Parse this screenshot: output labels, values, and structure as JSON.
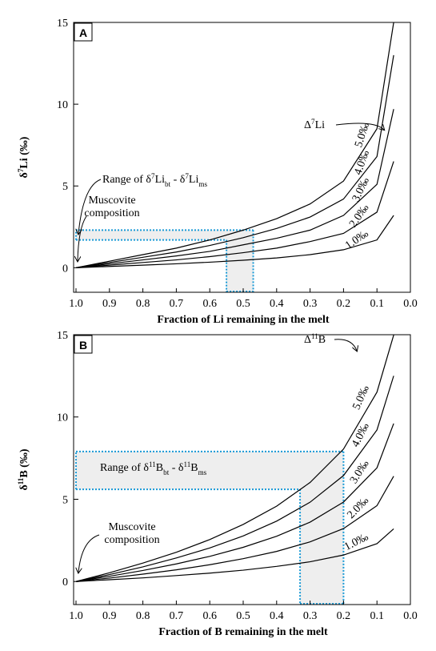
{
  "chart_data": [
    {
      "type": "line",
      "panel_label": "A",
      "xlabel": "Fraction of Li remaining in the melt",
      "ylabel": [
        {
          "text": "δ"
        },
        {
          "text": "7",
          "pos": "sup"
        },
        {
          "text": "Li (‰)"
        }
      ],
      "x": [
        1.0,
        0.9,
        0.8,
        0.7,
        0.6,
        0.5,
        0.4,
        0.3,
        0.2,
        0.1,
        0.05
      ],
      "series": [
        {
          "name": "5.0‰",
          "color": "#000000",
          "values": [
            0,
            0.4,
            0.8,
            1.2,
            1.7,
            2.3,
            3.0,
            3.9,
            5.3,
            8.5,
            15
          ]
        },
        {
          "name": "4.0‰",
          "color": "#000000",
          "values": [
            0,
            0.32,
            0.64,
            0.96,
            1.36,
            1.84,
            2.4,
            3.1,
            4.2,
            6.8,
            13
          ]
        },
        {
          "name": "3.0‰",
          "color": "#000000",
          "values": [
            0,
            0.24,
            0.48,
            0.72,
            1.0,
            1.4,
            1.8,
            2.3,
            3.2,
            5.1,
            9.7
          ]
        },
        {
          "name": "2.0‰",
          "color": "#000000",
          "values": [
            0,
            0.16,
            0.32,
            0.48,
            0.68,
            0.92,
            1.2,
            1.6,
            2.1,
            3.4,
            6.5
          ]
        },
        {
          "name": "1.0‰",
          "color": "#000000",
          "values": [
            0,
            0.08,
            0.16,
            0.24,
            0.34,
            0.46,
            0.6,
            0.8,
            1.1,
            1.7,
            3.2
          ]
        }
      ],
      "xlim": [
        1.0,
        0.0
      ],
      "ylim": [
        -1.5,
        15
      ],
      "xticks": [
        {
          "value": 1.0,
          "label": "1.0"
        },
        0.9,
        0.8,
        0.7,
        0.6,
        0.5,
        0.4,
        0.3,
        0.2,
        0.1,
        {
          "value": 0.0,
          "label": "0.0"
        }
      ],
      "yticks": [
        0,
        5,
        10,
        15
      ],
      "range_box": {
        "x": [
          0.55,
          0.47
        ],
        "y": [
          1.7,
          2.3
        ],
        "color": "#1a9ad6"
      },
      "range_label": [
        {
          "text": "Range of δ"
        },
        {
          "text": "7",
          "pos": "sup"
        },
        {
          "text": "Li"
        },
        {
          "text": "bt",
          "pos": "sub"
        },
        {
          "text": " - δ"
        },
        {
          "text": "7",
          "pos": "sup"
        },
        {
          "text": "Li"
        },
        {
          "text": "ms",
          "pos": "sub"
        }
      ],
      "muscovite_label": [
        "Muscovite",
        "composition"
      ],
      "delta_label": [
        {
          "text": "Δ"
        },
        {
          "text": "7",
          "pos": "sup"
        },
        {
          "text": "Li"
        }
      ]
    },
    {
      "type": "line",
      "panel_label": "B",
      "xlabel": "Fraction of B remaining in the melt",
      "ylabel": [
        {
          "text": "δ"
        },
        {
          "text": "11",
          "pos": "sup"
        },
        {
          "text": "B (‰)"
        }
      ],
      "x": [
        1.0,
        0.9,
        0.8,
        0.7,
        0.6,
        0.5,
        0.4,
        0.3,
        0.2,
        0.1,
        0.05
      ],
      "series": [
        {
          "name": "5.0‰",
          "color": "#000000",
          "values": [
            0,
            0.53,
            1.12,
            1.78,
            2.55,
            3.47,
            4.58,
            6.02,
            8.05,
            11.51,
            14.98
          ]
        },
        {
          "name": "4.0‰",
          "color": "#000000",
          "values": [
            0,
            0.42,
            0.89,
            1.43,
            2.04,
            2.77,
            3.67,
            4.82,
            6.44,
            9.21,
            12.5
          ]
        },
        {
          "name": "3.0‰",
          "color": "#000000",
          "values": [
            0,
            0.32,
            0.67,
            1.07,
            1.53,
            2.08,
            2.75,
            3.61,
            4.83,
            6.91,
            9.6
          ]
        },
        {
          "name": "2.0‰",
          "color": "#000000",
          "values": [
            0,
            0.21,
            0.45,
            0.71,
            1.02,
            1.39,
            1.83,
            2.41,
            3.22,
            4.61,
            6.4
          ]
        },
        {
          "name": "1.0‰",
          "color": "#000000",
          "values": [
            0,
            0.11,
            0.22,
            0.36,
            0.51,
            0.69,
            0.92,
            1.2,
            1.61,
            2.3,
            3.2
          ]
        }
      ],
      "xlim": [
        1.0,
        0.0
      ],
      "ylim": [
        -1.4,
        15
      ],
      "xticks": [
        {
          "value": 1.0,
          "label": "1.0"
        },
        0.9,
        0.8,
        0.7,
        0.6,
        0.5,
        0.4,
        0.3,
        0.2,
        0.1,
        {
          "value": 0.0,
          "label": "0.0"
        }
      ],
      "yticks": [
        0,
        5,
        10,
        15
      ],
      "range_box": {
        "x": [
          0.33,
          0.2
        ],
        "y": [
          5.6,
          7.9
        ],
        "color": "#1a9ad6"
      },
      "range_label": [
        {
          "text": "Range of δ"
        },
        {
          "text": "11",
          "pos": "sup"
        },
        {
          "text": "B"
        },
        {
          "text": "bt",
          "pos": "sub"
        },
        {
          "text": " - δ"
        },
        {
          "text": "11",
          "pos": "sup"
        },
        {
          "text": "B"
        },
        {
          "text": "ms",
          "pos": "sub"
        }
      ],
      "muscovite_label": [
        "Muscovite",
        "composition"
      ],
      "delta_label": [
        {
          "text": "Δ"
        },
        {
          "text": "11",
          "pos": "sup"
        },
        {
          "text": "B"
        }
      ]
    }
  ]
}
